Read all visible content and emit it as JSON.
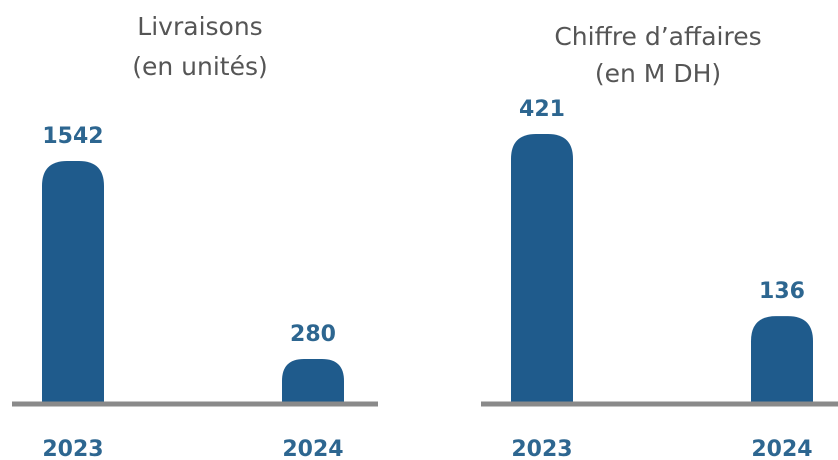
{
  "chart_data": [
    {
      "type": "bar",
      "title": "Livraisons",
      "subtitle": "(en unités)",
      "categories": [
        "2023",
        "2024"
      ],
      "values": [
        1542,
        280
      ],
      "color": "#1f5b8c"
    },
    {
      "type": "bar",
      "title": "Chiffre d’affaires",
      "subtitle": "(en M DH)",
      "categories": [
        "2023",
        "2024"
      ],
      "values": [
        421,
        136
      ],
      "color": "#1f5b8c"
    }
  ]
}
